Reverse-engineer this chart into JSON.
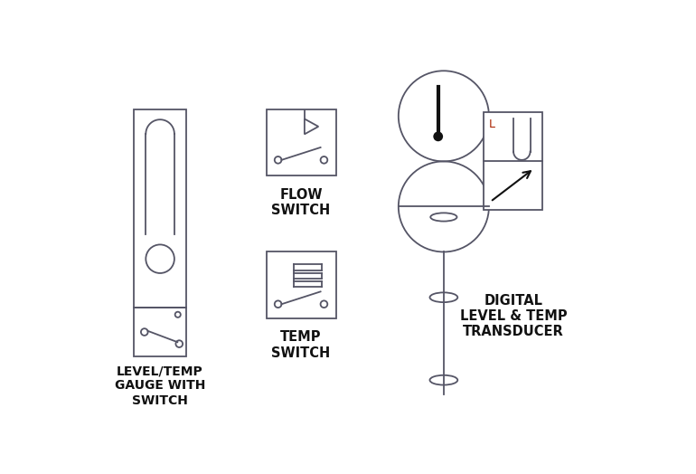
{
  "bg_color": "#ffffff",
  "line_color": "#555566",
  "text_color": "#111111",
  "label_color_red": "#aa2200",
  "figsize": [
    7.7,
    5.24
  ],
  "dpi": 100,
  "lw": 1.3,
  "symbols": {
    "level_temp_gauge": {
      "label": "LEVEL/TEMP\nGAUGE WITH\nSWITCH"
    },
    "flow_switch": {
      "label": "FLOW\nSWITCH"
    },
    "temp_switch": {
      "label": "TEMP\nSWITCH"
    },
    "digital_level_temp": {
      "label": "DIGITAL\nLEVEL & TEMP\nTRANSDUCER"
    }
  }
}
